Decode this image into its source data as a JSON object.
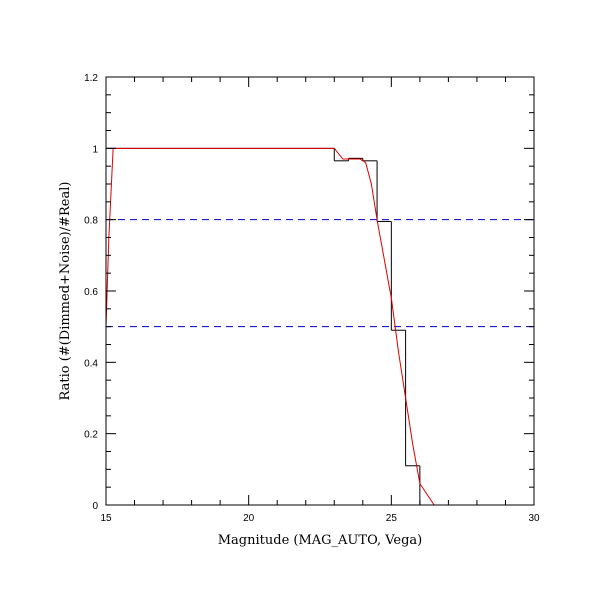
{
  "chart_data": {
    "type": "line",
    "xlabel": "Magnitude (MAG_AUTO, Vega)",
    "ylabel": "Ratio (#(Dimmed+Noise)/#Real)",
    "xlim": [
      15,
      30
    ],
    "ylim": [
      0,
      1.2
    ],
    "x_ticks": [
      15,
      20,
      25,
      30
    ],
    "x_tick_labels": [
      "15",
      "20",
      "25",
      "30"
    ],
    "y_ticks": [
      0,
      0.2,
      0.4,
      0.6,
      0.8,
      1.0,
      1.2
    ],
    "y_tick_labels": [
      "0",
      "0.2",
      "0.4",
      "0.6",
      "0.8",
      "1",
      "1.2"
    ],
    "grid": false,
    "colors": {
      "histogram": "#000000",
      "fit": "#dd0000",
      "reference": "#0000cc"
    },
    "histogram": {
      "bin_edges": [
        15.0,
        15.25,
        23.0,
        23.5,
        24.0,
        24.5,
        25.0,
        25.5,
        26.0,
        26.5,
        30.0
      ],
      "values": [
        1.0,
        1.0,
        0.965,
        0.972,
        0.965,
        0.795,
        0.49,
        0.11,
        0.0,
        0.0
      ]
    },
    "fit_curve": {
      "x": [
        15.0,
        15.1,
        15.25,
        15.5,
        23.0,
        23.3,
        23.6,
        23.9,
        24.1,
        24.3,
        24.5,
        24.75,
        25.0,
        25.25,
        25.5,
        25.75,
        26.0,
        26.5,
        30.0
      ],
      "y": [
        0.5,
        0.75,
        1.0,
        1.0,
        1.0,
        0.97,
        0.97,
        0.97,
        0.96,
        0.9,
        0.8,
        0.69,
        0.58,
        0.43,
        0.3,
        0.17,
        0.06,
        0.0,
        0.0
      ]
    },
    "reference_lines": [
      0.8,
      0.5
    ]
  }
}
